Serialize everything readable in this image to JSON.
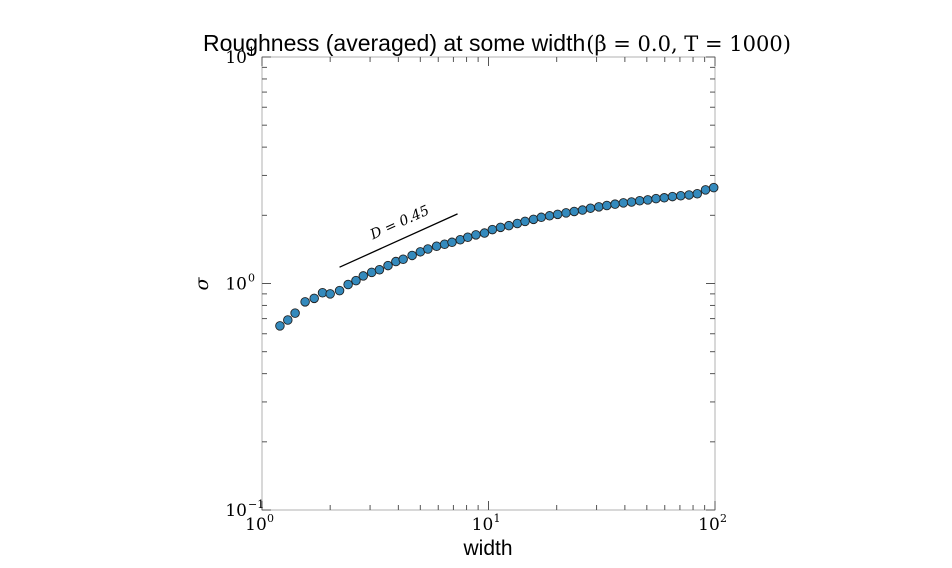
{
  "chart_data": {
    "type": "scatter",
    "title": "Roughness (averaged) at some width",
    "title_math": "(β = 0.0, T = 1000)",
    "xlabel": "width",
    "ylabel": "σ",
    "xscale": "log",
    "yscale": "log",
    "xlim": [
      1,
      100
    ],
    "ylim": [
      0.1,
      10
    ],
    "x_ticks": [
      {
        "base": "10",
        "exp": "0"
      },
      {
        "base": "10",
        "exp": "1"
      },
      {
        "base": "10",
        "exp": "2"
      }
    ],
    "y_ticks": [
      {
        "base": "10",
        "exp": "−1"
      },
      {
        "base": "10",
        "exp": "0"
      },
      {
        "base": "10",
        "exp": "1"
      }
    ],
    "grid": false,
    "legend": "none",
    "marker_color": "#348ABD",
    "marker_edge": "#222222",
    "series": [
      {
        "x": [
          1.2,
          1.3,
          1.4,
          1.55,
          1.7,
          1.85,
          2.0,
          2.2,
          2.4,
          2.6,
          2.8,
          3.05,
          3.3,
          3.6,
          3.9,
          4.2,
          4.6,
          5.0,
          5.4,
          5.9,
          6.4,
          6.9,
          7.5,
          8.1,
          8.8,
          9.6,
          10.4,
          11.3,
          12.3,
          13.4,
          14.5,
          15.8,
          17.1,
          18.6,
          20.2,
          22.0,
          23.9,
          26.0,
          28.2,
          30.7,
          33.3,
          36.2,
          39.4,
          42.8,
          46.5,
          50.5,
          54.9,
          59.7,
          64.9,
          70.6,
          76.8,
          83.5,
          90.8,
          98.7
        ],
        "y": [
          0.65,
          0.69,
          0.74,
          0.83,
          0.86,
          0.91,
          0.9,
          0.93,
          0.99,
          1.03,
          1.08,
          1.12,
          1.15,
          1.2,
          1.25,
          1.28,
          1.33,
          1.38,
          1.42,
          1.46,
          1.49,
          1.52,
          1.56,
          1.6,
          1.64,
          1.67,
          1.73,
          1.77,
          1.8,
          1.84,
          1.88,
          1.92,
          1.96,
          1.99,
          2.02,
          2.05,
          2.08,
          2.11,
          2.15,
          2.18,
          2.21,
          2.24,
          2.27,
          2.29,
          2.32,
          2.34,
          2.37,
          2.39,
          2.42,
          2.44,
          2.46,
          2.49,
          2.59,
          2.65
        ]
      }
    ],
    "annotations": [
      {
        "text": "D = 0.45",
        "line_from": [
          2.2,
          1.18
        ],
        "line_to": [
          7.3,
          2.03
        ]
      }
    ]
  }
}
